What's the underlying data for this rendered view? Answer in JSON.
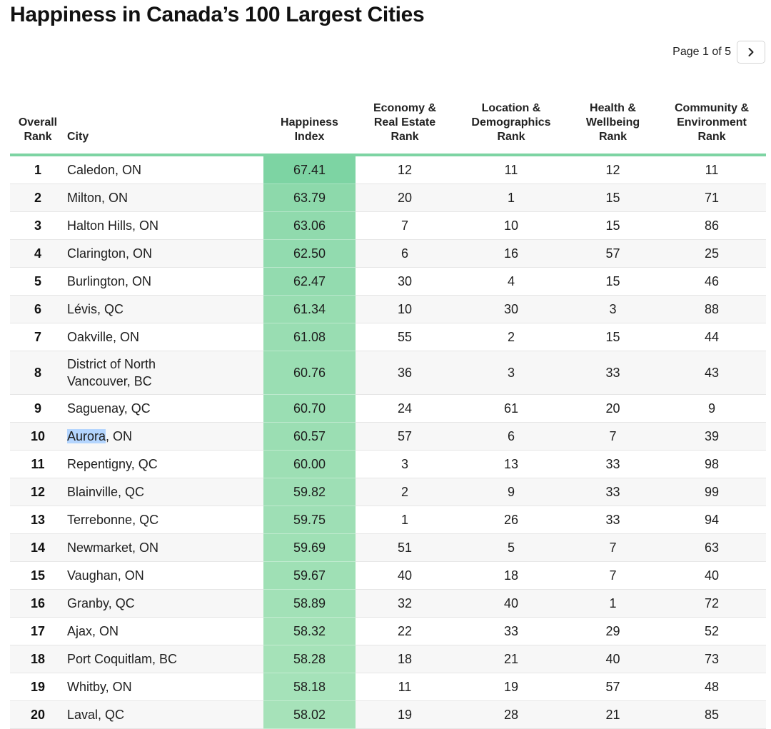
{
  "title": "Happiness in Canada’s 100 Largest Cities",
  "pager": {
    "label": "Page 1 of 5",
    "next_icon": "chevron-right-icon"
  },
  "columns": {
    "overall_rank": [
      "Overall",
      "Rank"
    ],
    "city": "City",
    "happiness_index": [
      "Happiness",
      "Index"
    ],
    "economy": [
      "Economy &",
      "Real Estate",
      "Rank"
    ],
    "location": [
      "Location &",
      "Demographics",
      "Rank"
    ],
    "health": [
      "Health &",
      "Wellbeing",
      "Rank"
    ],
    "community": [
      "Community &",
      "Environment",
      "Rank"
    ]
  },
  "colors": {
    "accent": "#7dd4a3",
    "heat_low": "#a6e2b9",
    "heat_high": "#7dd4a3",
    "selection": "#b4d5fe"
  },
  "chart_data": {
    "type": "table",
    "title": "Happiness in Canada’s 100 Largest Cities",
    "columns": [
      "Overall Rank",
      "City",
      "Happiness Index",
      "Economy & Real Estate Rank",
      "Location & Demographics Rank",
      "Health & Wellbeing Rank",
      "Community & Environment Rank"
    ],
    "rows": [
      {
        "rank": "1",
        "city": "Caledon, ON",
        "index": "67.41",
        "economy": "12",
        "location": "11",
        "health": "12",
        "community": "11"
      },
      {
        "rank": "2",
        "city": "Milton, ON",
        "index": "63.79",
        "economy": "20",
        "location": "1",
        "health": "15",
        "community": "71"
      },
      {
        "rank": "3",
        "city": "Halton Hills, ON",
        "index": "63.06",
        "economy": "7",
        "location": "10",
        "health": "15",
        "community": "86"
      },
      {
        "rank": "4",
        "city": "Clarington, ON",
        "index": "62.50",
        "economy": "6",
        "location": "16",
        "health": "57",
        "community": "25"
      },
      {
        "rank": "5",
        "city": "Burlington, ON",
        "index": "62.47",
        "economy": "30",
        "location": "4",
        "health": "15",
        "community": "46"
      },
      {
        "rank": "6",
        "city": "Lévis, QC",
        "index": "61.34",
        "economy": "10",
        "location": "30",
        "health": "3",
        "community": "88"
      },
      {
        "rank": "7",
        "city": "Oakville, ON",
        "index": "61.08",
        "economy": "55",
        "location": "2",
        "health": "15",
        "community": "44"
      },
      {
        "rank": "8",
        "city": "District of North Vancouver, BC",
        "index": "60.76",
        "economy": "36",
        "location": "3",
        "health": "33",
        "community": "43"
      },
      {
        "rank": "9",
        "city": "Saguenay, QC",
        "index": "60.70",
        "economy": "24",
        "location": "61",
        "health": "20",
        "community": "9"
      },
      {
        "rank": "10",
        "city": "Aurora, ON",
        "city_selected": "Aurora",
        "city_rest": ", ON",
        "index": "60.57",
        "economy": "57",
        "location": "6",
        "health": "7",
        "community": "39"
      },
      {
        "rank": "11",
        "city": "Repentigny, QC",
        "index": "60.00",
        "economy": "3",
        "location": "13",
        "health": "33",
        "community": "98"
      },
      {
        "rank": "12",
        "city": "Blainville, QC",
        "index": "59.82",
        "economy": "2",
        "location": "9",
        "health": "33",
        "community": "99"
      },
      {
        "rank": "13",
        "city": "Terrebonne, QC",
        "index": "59.75",
        "economy": "1",
        "location": "26",
        "health": "33",
        "community": "94"
      },
      {
        "rank": "14",
        "city": "Newmarket, ON",
        "index": "59.69",
        "economy": "51",
        "location": "5",
        "health": "7",
        "community": "63"
      },
      {
        "rank": "15",
        "city": "Vaughan, ON",
        "index": "59.67",
        "economy": "40",
        "location": "18",
        "health": "7",
        "community": "40"
      },
      {
        "rank": "16",
        "city": "Granby, QC",
        "index": "58.89",
        "economy": "32",
        "location": "40",
        "health": "1",
        "community": "72"
      },
      {
        "rank": "17",
        "city": "Ajax, ON",
        "index": "58.32",
        "economy": "22",
        "location": "33",
        "health": "29",
        "community": "52"
      },
      {
        "rank": "18",
        "city": "Port Coquitlam, BC",
        "index": "58.28",
        "economy": "18",
        "location": "21",
        "health": "40",
        "community": "73"
      },
      {
        "rank": "19",
        "city": "Whitby, ON",
        "index": "58.18",
        "economy": "11",
        "location": "19",
        "health": "57",
        "community": "48"
      },
      {
        "rank": "20",
        "city": "Laval, QC",
        "index": "58.02",
        "economy": "19",
        "location": "28",
        "health": "21",
        "community": "85"
      }
    ]
  }
}
